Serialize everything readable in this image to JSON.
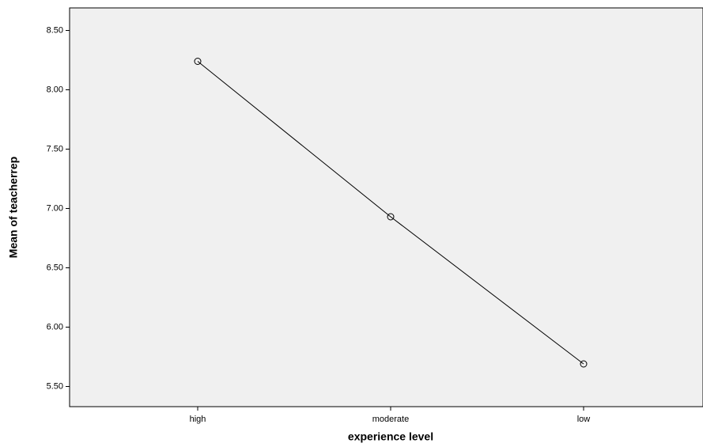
{
  "chart_data": {
    "type": "line",
    "x_label": "experience level",
    "y_label": "Mean of teacherrep",
    "categories": [
      "high",
      "moderate",
      "low"
    ],
    "values": [
      8.24,
      6.93,
      5.69
    ],
    "color": "#000000",
    "ylim": [
      5.33,
      8.69
    ],
    "yticks": [
      {
        "value": 5.5,
        "label": "5.50"
      },
      {
        "value": 6.0,
        "label": "6.00"
      },
      {
        "value": 6.5,
        "label": "6.50"
      },
      {
        "value": 7.0,
        "label": "7.00"
      },
      {
        "value": 7.5,
        "label": "7.50"
      },
      {
        "value": 8.0,
        "label": "8.00"
      },
      {
        "value": 8.5,
        "label": "8.50"
      }
    ]
  }
}
